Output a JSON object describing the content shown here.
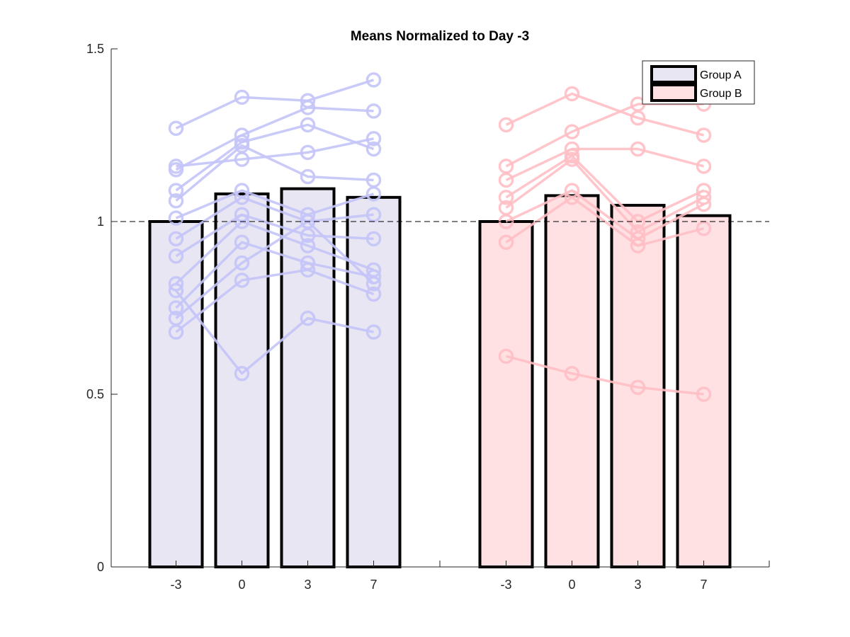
{
  "chart_data": {
    "type": "bar",
    "title": "Means Normalized to Day -3",
    "xlabel": "",
    "ylabel": "",
    "ylim": [
      0,
      1.5
    ],
    "yticks": [
      0,
      0.5,
      1,
      1.5
    ],
    "ytick_labels": [
      "0",
      "0.5",
      "1",
      "1.5"
    ],
    "reference_line": {
      "y": 1,
      "style": "dashed"
    },
    "grid": false,
    "legend_placement": "top-right",
    "groups": [
      {
        "name": "Group A",
        "color": "#E8E6F2",
        "point_color": "#C4C4F8",
        "categories": [
          "-3",
          "0",
          "3",
          "7"
        ],
        "values": [
          1.0,
          1.08,
          1.095,
          1.07
        ],
        "individuals": [
          [
            1.27,
            1.36,
            1.35,
            1.41
          ],
          [
            1.15,
            1.25,
            1.33,
            1.32
          ],
          [
            1.09,
            1.23,
            1.28,
            1.21
          ],
          [
            1.16,
            1.18,
            1.2,
            1.24
          ],
          [
            1.06,
            1.22,
            1.13,
            1.12
          ],
          [
            1.01,
            1.09,
            1.02,
            1.08
          ],
          [
            0.95,
            1.07,
            1.0,
            1.02
          ],
          [
            0.9,
            1.02,
            0.96,
            0.95
          ],
          [
            0.82,
            1.0,
            0.93,
            0.86
          ],
          [
            0.75,
            0.94,
            0.88,
            0.84
          ],
          [
            0.72,
            0.88,
            1.0,
            0.82
          ],
          [
            0.68,
            0.83,
            0.86,
            0.79
          ],
          [
            0.8,
            0.56,
            0.72,
            0.68
          ]
        ]
      },
      {
        "name": "Group B",
        "color": "#FFE1E4",
        "point_color": "#FFBFC4",
        "categories": [
          "-3",
          "0",
          "3",
          "7"
        ],
        "values": [
          1.0,
          1.075,
          1.047,
          1.017
        ],
        "individuals": [
          [
            1.28,
            1.37,
            1.3,
            1.25
          ],
          [
            1.16,
            1.26,
            1.34,
            1.34
          ],
          [
            1.12,
            1.21,
            1.21,
            1.16
          ],
          [
            1.07,
            1.19,
            1.0,
            1.09
          ],
          [
            1.04,
            1.18,
            0.97,
            1.07
          ],
          [
            1.0,
            1.09,
            0.95,
            1.05
          ],
          [
            0.94,
            1.07,
            0.93,
            0.98
          ],
          [
            0.61,
            0.56,
            0.52,
            0.5
          ]
        ]
      }
    ]
  }
}
